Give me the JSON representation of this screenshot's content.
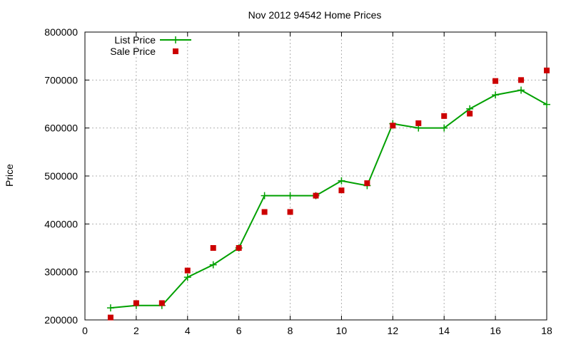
{
  "chart_data": {
    "type": "line",
    "title": "Nov 2012 94542 Home Prices",
    "xlabel": "",
    "ylabel": "Price",
    "xlim": [
      0,
      18
    ],
    "ylim": [
      200000,
      800000
    ],
    "x_ticks": [
      "0",
      "2",
      "4",
      "6",
      "8",
      "10",
      "12",
      "14",
      "16",
      "18"
    ],
    "y_ticks": [
      "200000",
      "300000",
      "400000",
      "500000",
      "600000",
      "700000",
      "800000"
    ],
    "grid": true,
    "legend_position": "top-left",
    "series": [
      {
        "name": "List Price",
        "style": "line-with-plus-markers",
        "color": "#00a000",
        "x": [
          1,
          2,
          3,
          4,
          5,
          6,
          7,
          8,
          9,
          10,
          11,
          12,
          13,
          14,
          15,
          16,
          17,
          18
        ],
        "y": [
          225000,
          230000,
          230000,
          289000,
          315000,
          350000,
          459000,
          459000,
          459000,
          490000,
          480000,
          609000,
          600000,
          600000,
          640000,
          669000,
          679000,
          649000
        ]
      },
      {
        "name": "Sale Price",
        "style": "square-markers",
        "color": "#cc0000",
        "x": [
          1,
          2,
          3,
          4,
          5,
          6,
          7,
          8,
          9,
          10,
          11,
          12,
          13,
          14,
          15,
          16,
          17,
          18
        ],
        "y": [
          205000,
          235000,
          235000,
          303000,
          350000,
          350000,
          425000,
          425000,
          459000,
          470000,
          485000,
          605000,
          610000,
          625000,
          630000,
          698000,
          700000,
          720000
        ]
      }
    ]
  }
}
